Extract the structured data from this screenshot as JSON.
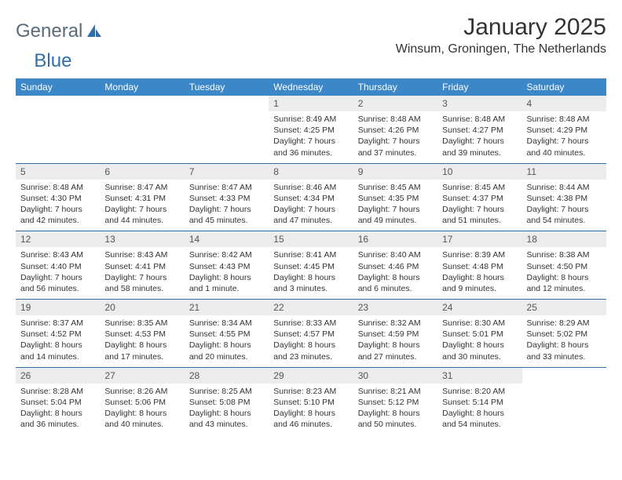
{
  "brand": {
    "part1": "General",
    "part2": "Blue"
  },
  "title": "January 2025",
  "location": "Winsum, Groningen, The Netherlands",
  "daynames": [
    "Sunday",
    "Monday",
    "Tuesday",
    "Wednesday",
    "Thursday",
    "Friday",
    "Saturday"
  ],
  "colors": {
    "header_bg": "#3b87c8",
    "header_fg": "#ffffff",
    "daynum_bg": "#ececec",
    "rule": "#2f6fa8",
    "text": "#333333"
  },
  "typography": {
    "title_fontsize": 30,
    "location_fontsize": 16,
    "header_fontsize": 12,
    "daynum_fontsize": 12,
    "body_fontsize": 10.5
  },
  "weeks": [
    [
      null,
      null,
      null,
      {
        "n": "1",
        "sunrise": "Sunrise: 8:49 AM",
        "sunset": "Sunset: 4:25 PM",
        "dl1": "Daylight: 7 hours",
        "dl2": "and 36 minutes."
      },
      {
        "n": "2",
        "sunrise": "Sunrise: 8:48 AM",
        "sunset": "Sunset: 4:26 PM",
        "dl1": "Daylight: 7 hours",
        "dl2": "and 37 minutes."
      },
      {
        "n": "3",
        "sunrise": "Sunrise: 8:48 AM",
        "sunset": "Sunset: 4:27 PM",
        "dl1": "Daylight: 7 hours",
        "dl2": "and 39 minutes."
      },
      {
        "n": "4",
        "sunrise": "Sunrise: 8:48 AM",
        "sunset": "Sunset: 4:29 PM",
        "dl1": "Daylight: 7 hours",
        "dl2": "and 40 minutes."
      }
    ],
    [
      {
        "n": "5",
        "sunrise": "Sunrise: 8:48 AM",
        "sunset": "Sunset: 4:30 PM",
        "dl1": "Daylight: 7 hours",
        "dl2": "and 42 minutes."
      },
      {
        "n": "6",
        "sunrise": "Sunrise: 8:47 AM",
        "sunset": "Sunset: 4:31 PM",
        "dl1": "Daylight: 7 hours",
        "dl2": "and 44 minutes."
      },
      {
        "n": "7",
        "sunrise": "Sunrise: 8:47 AM",
        "sunset": "Sunset: 4:33 PM",
        "dl1": "Daylight: 7 hours",
        "dl2": "and 45 minutes."
      },
      {
        "n": "8",
        "sunrise": "Sunrise: 8:46 AM",
        "sunset": "Sunset: 4:34 PM",
        "dl1": "Daylight: 7 hours",
        "dl2": "and 47 minutes."
      },
      {
        "n": "9",
        "sunrise": "Sunrise: 8:45 AM",
        "sunset": "Sunset: 4:35 PM",
        "dl1": "Daylight: 7 hours",
        "dl2": "and 49 minutes."
      },
      {
        "n": "10",
        "sunrise": "Sunrise: 8:45 AM",
        "sunset": "Sunset: 4:37 PM",
        "dl1": "Daylight: 7 hours",
        "dl2": "and 51 minutes."
      },
      {
        "n": "11",
        "sunrise": "Sunrise: 8:44 AM",
        "sunset": "Sunset: 4:38 PM",
        "dl1": "Daylight: 7 hours",
        "dl2": "and 54 minutes."
      }
    ],
    [
      {
        "n": "12",
        "sunrise": "Sunrise: 8:43 AM",
        "sunset": "Sunset: 4:40 PM",
        "dl1": "Daylight: 7 hours",
        "dl2": "and 56 minutes."
      },
      {
        "n": "13",
        "sunrise": "Sunrise: 8:43 AM",
        "sunset": "Sunset: 4:41 PM",
        "dl1": "Daylight: 7 hours",
        "dl2": "and 58 minutes."
      },
      {
        "n": "14",
        "sunrise": "Sunrise: 8:42 AM",
        "sunset": "Sunset: 4:43 PM",
        "dl1": "Daylight: 8 hours",
        "dl2": "and 1 minute."
      },
      {
        "n": "15",
        "sunrise": "Sunrise: 8:41 AM",
        "sunset": "Sunset: 4:45 PM",
        "dl1": "Daylight: 8 hours",
        "dl2": "and 3 minutes."
      },
      {
        "n": "16",
        "sunrise": "Sunrise: 8:40 AM",
        "sunset": "Sunset: 4:46 PM",
        "dl1": "Daylight: 8 hours",
        "dl2": "and 6 minutes."
      },
      {
        "n": "17",
        "sunrise": "Sunrise: 8:39 AM",
        "sunset": "Sunset: 4:48 PM",
        "dl1": "Daylight: 8 hours",
        "dl2": "and 9 minutes."
      },
      {
        "n": "18",
        "sunrise": "Sunrise: 8:38 AM",
        "sunset": "Sunset: 4:50 PM",
        "dl1": "Daylight: 8 hours",
        "dl2": "and 12 minutes."
      }
    ],
    [
      {
        "n": "19",
        "sunrise": "Sunrise: 8:37 AM",
        "sunset": "Sunset: 4:52 PM",
        "dl1": "Daylight: 8 hours",
        "dl2": "and 14 minutes."
      },
      {
        "n": "20",
        "sunrise": "Sunrise: 8:35 AM",
        "sunset": "Sunset: 4:53 PM",
        "dl1": "Daylight: 8 hours",
        "dl2": "and 17 minutes."
      },
      {
        "n": "21",
        "sunrise": "Sunrise: 8:34 AM",
        "sunset": "Sunset: 4:55 PM",
        "dl1": "Daylight: 8 hours",
        "dl2": "and 20 minutes."
      },
      {
        "n": "22",
        "sunrise": "Sunrise: 8:33 AM",
        "sunset": "Sunset: 4:57 PM",
        "dl1": "Daylight: 8 hours",
        "dl2": "and 23 minutes."
      },
      {
        "n": "23",
        "sunrise": "Sunrise: 8:32 AM",
        "sunset": "Sunset: 4:59 PM",
        "dl1": "Daylight: 8 hours",
        "dl2": "and 27 minutes."
      },
      {
        "n": "24",
        "sunrise": "Sunrise: 8:30 AM",
        "sunset": "Sunset: 5:01 PM",
        "dl1": "Daylight: 8 hours",
        "dl2": "and 30 minutes."
      },
      {
        "n": "25",
        "sunrise": "Sunrise: 8:29 AM",
        "sunset": "Sunset: 5:02 PM",
        "dl1": "Daylight: 8 hours",
        "dl2": "and 33 minutes."
      }
    ],
    [
      {
        "n": "26",
        "sunrise": "Sunrise: 8:28 AM",
        "sunset": "Sunset: 5:04 PM",
        "dl1": "Daylight: 8 hours",
        "dl2": "and 36 minutes."
      },
      {
        "n": "27",
        "sunrise": "Sunrise: 8:26 AM",
        "sunset": "Sunset: 5:06 PM",
        "dl1": "Daylight: 8 hours",
        "dl2": "and 40 minutes."
      },
      {
        "n": "28",
        "sunrise": "Sunrise: 8:25 AM",
        "sunset": "Sunset: 5:08 PM",
        "dl1": "Daylight: 8 hours",
        "dl2": "and 43 minutes."
      },
      {
        "n": "29",
        "sunrise": "Sunrise: 8:23 AM",
        "sunset": "Sunset: 5:10 PM",
        "dl1": "Daylight: 8 hours",
        "dl2": "and 46 minutes."
      },
      {
        "n": "30",
        "sunrise": "Sunrise: 8:21 AM",
        "sunset": "Sunset: 5:12 PM",
        "dl1": "Daylight: 8 hours",
        "dl2": "and 50 minutes."
      },
      {
        "n": "31",
        "sunrise": "Sunrise: 8:20 AM",
        "sunset": "Sunset: 5:14 PM",
        "dl1": "Daylight: 8 hours",
        "dl2": "and 54 minutes."
      },
      null
    ]
  ]
}
